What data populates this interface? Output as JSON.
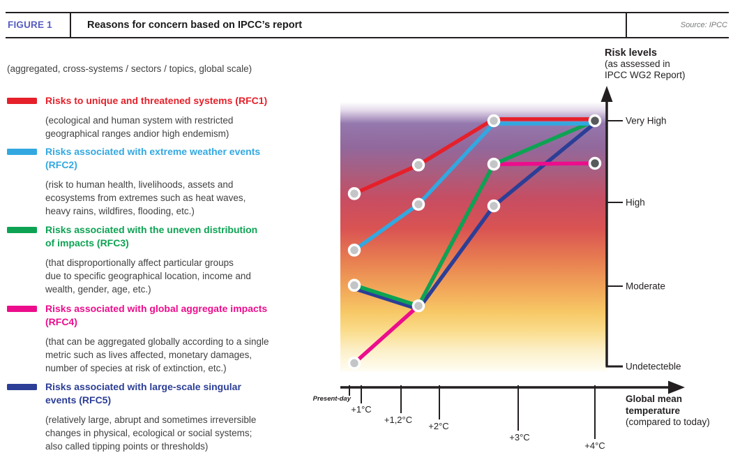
{
  "header": {
    "figure_label": "FIGURE 1",
    "title": "Reasons for concern based on IPCC’s report",
    "source": "Source: IPCC"
  },
  "legend": {
    "intro": "(aggregated, cross-systems / sectors / topics, global scale)",
    "items": [
      {
        "id": "RFC1",
        "color": "#e5202a",
        "title": "Risks to unique and threatened systems (RFC1)",
        "description": "(ecological and human system with restricted\ngeographical ranges andior high endemism)"
      },
      {
        "id": "RFC2",
        "color": "#33a8e0",
        "title": "Risks associated with extreme weather events\n(RFC2)",
        "description": "(risk to human health, livelihoods, assets and\necosystems from extremes such as heat waves,\nheavy rains, wildfires, flooding, etc.)"
      },
      {
        "id": "RFC3",
        "color": "#0da353",
        "title": "Risks associated with the uneven distribution\nof impacts (RFC3)",
        "description": "(that disproportionally affect particular groups\ndue to specific geographical location, income and\nwealth, gender, age, etc.)"
      },
      {
        "id": "RFC4",
        "color": "#ec0d8c",
        "title": "Risks associated with global aggregate impacts\n(RFC4)",
        "description": "(that can be aggregated globally according to a single\nmetric such as lives affected, monetary damages,\nnumber of species at risk of extinction, etc.)"
      },
      {
        "id": "RFC5",
        "color": "#2c3e96",
        "title": "Risks associated with large-scale singular\nevents (RFC5)",
        "description": "(relatively large, abrupt and sometimes irreversible\nchanges in physical, ecological or social systems;\nalso called tipping points or thresholds)"
      }
    ]
  },
  "chart_data": {
    "type": "line",
    "y_axis": {
      "title": "Risk levels",
      "subtitle_line1": "(as assessed in",
      "subtitle_line2": "IPCC WG2 Report)",
      "levels_top_to_bottom": [
        "Very High",
        "High",
        "Moderate",
        "Undetecteble"
      ],
      "risk_scale": {
        "Undetecteble": 0,
        "Moderate": 1,
        "High": 2,
        "Very High": 3
      }
    },
    "x_axis": {
      "title": "Global mean temperature",
      "subtitle": "(compared to today)",
      "ticks": [
        "Present-day",
        "+1°C",
        "+1,2°C",
        "+2°C",
        "+3°C",
        "+4°C"
      ]
    },
    "series": [
      {
        "name": "RFC1",
        "color": "#e5202a",
        "risk_values": [
          2.11,
          2.46,
          3.02,
          3.02
        ]
      },
      {
        "name": "RFC2",
        "color": "#33a8e0",
        "risk_values": [
          1.42,
          1.98,
          2.965,
          2.965
        ]
      },
      {
        "name": "RFC3",
        "color": "#0da353",
        "risk_values": [
          0.99,
          0.74,
          2.47,
          3.0
        ]
      },
      {
        "name": "RFC4",
        "color": "#ec0d8c",
        "risk_values": [
          0.04,
          0.74,
          2.47,
          2.48
        ]
      },
      {
        "name": "RFC5",
        "color": "#2c3e96",
        "risk_values": [
          0.95,
          0.7,
          1.96,
          2.97
        ]
      }
    ],
    "markers": {
      "light_color": "#c4c5c7",
      "dark_color": "#58595b",
      "light": [
        [
          0,
          2.11
        ],
        [
          0,
          1.42
        ],
        [
          0,
          0.99
        ],
        [
          0,
          0.04
        ],
        [
          1,
          2.46
        ],
        [
          1,
          1.98
        ],
        [
          1,
          0.74
        ],
        [
          2,
          3.0
        ],
        [
          2,
          2.47
        ],
        [
          2,
          1.96
        ]
      ],
      "dark": [
        [
          3,
          3.0
        ],
        [
          3,
          2.48
        ]
      ]
    },
    "background_gradient": [
      "#ffffff",
      "#e6dcec",
      "#9478ad",
      "#92689c",
      "#a95e80",
      "#c74d62",
      "#d95352",
      "#e87f51",
      "#f2a95a",
      "#f7c866",
      "#fadc8c",
      "#fcefc7",
      "#fffdf3"
    ]
  }
}
